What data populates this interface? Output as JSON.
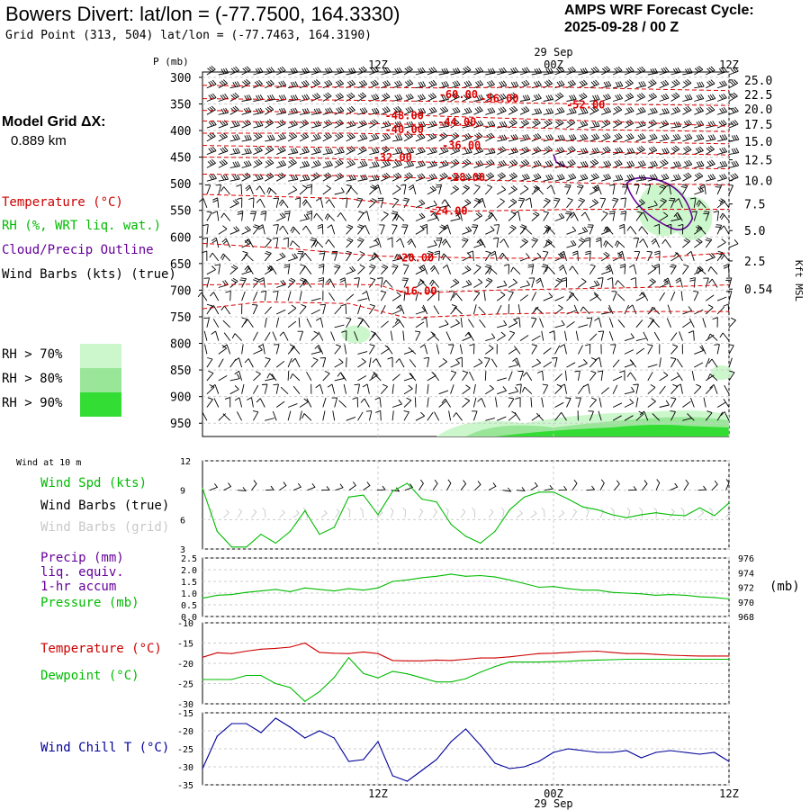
{
  "header": {
    "title": "Bowers Divert:  lat/lon = (-77.7500, 164.3330)",
    "subtitle": "Grid Point (313, 504) lat/lon = (-77.7463, 164.3190)",
    "cycle_label": "AMPS WRF Forecast Cycle:",
    "cycle_value": "2025-09-28 / 00  Z",
    "grid_dx_label": "Model Grid ΔX:",
    "grid_dx_value": "0.889 km"
  },
  "legend": {
    "temperature": "Temperature (°C)",
    "rh": "RH (%, WRT liq. wat.)",
    "cloud": "Cloud/Precip Outline",
    "wind_barbs": "Wind Barbs (kts) (true)",
    "rh_levels": [
      "RH > 70%",
      "RH > 80%",
      "RH > 90%"
    ],
    "rh_colors": [
      "#ccf7cc",
      "#99e699",
      "#33dd33"
    ]
  },
  "time_axis": {
    "top_date": "29 Sep",
    "bottom_date": "29 Sep",
    "ticks": [
      "12Z",
      "00Z",
      "12Z"
    ],
    "tick_hours": [
      12,
      24,
      36
    ]
  },
  "chart_data": [
    {
      "type": "contour",
      "id": "cross-section",
      "ylabel": "P (mb)",
      "right_axis_label": "Kft MSL",
      "pressure_ticks": [
        300,
        350,
        400,
        450,
        500,
        550,
        600,
        650,
        700,
        750,
        800,
        850,
        900,
        950
      ],
      "height_ticks": [
        "25.0",
        "22.5",
        "20.0",
        "17.5",
        "15.0",
        "12.5",
        "10.0",
        "7.5",
        "5.0",
        "2.5",
        "0.54"
      ],
      "height_tick_pressures": [
        305,
        332,
        359,
        388,
        420,
        455,
        494,
        538,
        588,
        645,
        698
      ],
      "x_range": [
        0,
        36
      ],
      "y_range": [
        290,
        975
      ],
      "temperature_labels": [
        {
          "text": "-60.00",
          "x": 17.5,
          "p": 332
        },
        {
          "text": "-56.00",
          "x": 20.3,
          "p": 340
        },
        {
          "text": "-52.00",
          "x": 26.2,
          "p": 352
        },
        {
          "text": "-48.00",
          "x": 13.8,
          "p": 372
        },
        {
          "text": "-44.00",
          "x": 17.4,
          "p": 384
        },
        {
          "text": "-40.00",
          "x": 13.8,
          "p": 398
        },
        {
          "text": "-36.00",
          "x": 17.7,
          "p": 428
        },
        {
          "text": "-32.00",
          "x": 13.0,
          "p": 451
        },
        {
          "text": "-28.00",
          "x": 18.0,
          "p": 488
        },
        {
          "text": "-24.00",
          "x": 16.8,
          "p": 551
        },
        {
          "text": "-20.00",
          "x": 14.5,
          "p": 639
        },
        {
          "text": "-16.00",
          "x": 14.7,
          "p": 702
        }
      ]
    },
    {
      "type": "line",
      "id": "wind-speed",
      "title": "Wind at 10 m",
      "series_label": "Wind Spd (kts)",
      "barbs_true_label": "Wind Barbs (true)",
      "barbs_grid_label": "Wind Barbs (grid)",
      "ylim": [
        3,
        12
      ],
      "yticks": [
        3,
        6,
        9,
        12
      ],
      "x": [
        0,
        1,
        2,
        3,
        4,
        5,
        6,
        7,
        8,
        9,
        10,
        11,
        12,
        13,
        14,
        15,
        16,
        17,
        18,
        19,
        20,
        21,
        22,
        23,
        24,
        25,
        26,
        27,
        28,
        29,
        30,
        31,
        32,
        33,
        34,
        35,
        36
      ],
      "values": [
        9.2,
        4.8,
        3.2,
        3.2,
        4.5,
        3.6,
        4.8,
        6.9,
        4.5,
        5.2,
        8.3,
        8.5,
        6.5,
        8.9,
        9.7,
        8.1,
        7.8,
        5.5,
        4.3,
        3.6,
        4.8,
        7.0,
        8.3,
        8.8,
        8.8,
        8.1,
        7.3,
        7.0,
        6.5,
        6.2,
        6.5,
        6.7,
        6.5,
        6.4,
        7.2,
        6.4,
        7.7
      ]
    },
    {
      "type": "line",
      "id": "precip-pressure",
      "precip_label": "Precip (mm)",
      "precip_label_2": "liq. equiv.",
      "precip_label_3": "1-hr accum",
      "pressure_label": "Pressure (mb)",
      "right_unit": "(mb)",
      "left_ylim": [
        0.0,
        2.5
      ],
      "left_yticks": [
        "0.0",
        "0.5",
        "1.0",
        "1.5",
        "2.0",
        "2.5"
      ],
      "right_ylim": [
        968,
        976
      ],
      "right_yticks": [
        968,
        970,
        972,
        974,
        976
      ],
      "x": [
        0,
        1,
        2,
        3,
        4,
        5,
        6,
        7,
        8,
        9,
        10,
        11,
        12,
        13,
        14,
        15,
        16,
        17,
        18,
        19,
        20,
        21,
        22,
        23,
        24,
        25,
        26,
        27,
        28,
        29,
        30,
        31,
        32,
        33,
        34,
        35,
        36
      ],
      "pressure": [
        970.5,
        970.9,
        971.0,
        971.3,
        971.5,
        971.7,
        971.4,
        971.9,
        971.7,
        971.5,
        971.8,
        971.6,
        971.9,
        972.8,
        973.0,
        973.3,
        973.5,
        973.8,
        973.5,
        973.6,
        973.4,
        973.0,
        972.5,
        972.0,
        972.1,
        971.8,
        971.6,
        971.6,
        971.3,
        971.2,
        971.1,
        970.9,
        971.0,
        970.9,
        970.7,
        970.6,
        970.4
      ]
    },
    {
      "type": "line",
      "id": "temp-dewpoint",
      "temperature_label": "Temperature (°C)",
      "dewpoint_label": "Dewpoint (°C)",
      "ylim": [
        -30,
        -10
      ],
      "yticks": [
        -30,
        -25,
        -20,
        -15,
        -10
      ],
      "x": [
        0,
        1,
        2,
        3,
        4,
        5,
        6,
        7,
        8,
        9,
        10,
        11,
        12,
        13,
        14,
        15,
        16,
        17,
        18,
        19,
        20,
        21,
        22,
        23,
        24,
        25,
        26,
        27,
        28,
        29,
        30,
        31,
        32,
        33,
        34,
        35,
        36
      ],
      "series": [
        {
          "name": "Temperature (°C)",
          "color": "#cc0000",
          "values": [
            -18.5,
            -17.4,
            -17.6,
            -17.0,
            -16.5,
            -16.3,
            -16.0,
            -15.0,
            -17.3,
            -17.5,
            -17.6,
            -17.2,
            -17.6,
            -19.3,
            -19.4,
            -19.4,
            -19.2,
            -19.3,
            -19.0,
            -18.7,
            -18.7,
            -18.4,
            -18.0,
            -17.6,
            -17.5,
            -17.3,
            -17.1,
            -17.0,
            -17.3,
            -17.6,
            -17.6,
            -17.8,
            -18.0,
            -18.1,
            -18.2,
            -18.2,
            -18.2
          ]
        },
        {
          "name": "Dewpoint (°C)",
          "color": "#00bb00",
          "values": [
            -24.0,
            -24.0,
            -24.0,
            -23.0,
            -23.0,
            -25.0,
            -26.0,
            -29.4,
            -27.0,
            -23.5,
            -18.6,
            -22.5,
            -23.6,
            -22.0,
            -22.6,
            -23.6,
            -24.6,
            -24.6,
            -23.8,
            -22.2,
            -20.8,
            -19.7,
            -19.7,
            -19.7,
            -19.6,
            -19.5,
            -19.3,
            -19.2,
            -19.1,
            -19.0,
            -19.0,
            -19.0,
            -19.0,
            -19.0,
            -19.0,
            -19.0,
            -19.0
          ]
        }
      ]
    },
    {
      "type": "line",
      "id": "wind-chill",
      "series_label": "Wind Chill T (°C)",
      "color": "#000099",
      "ylim": [
        -35,
        -15
      ],
      "yticks": [
        -35,
        -30,
        -25,
        -20,
        -15
      ],
      "x": [
        0,
        1,
        2,
        3,
        4,
        5,
        6,
        7,
        8,
        9,
        10,
        11,
        12,
        13,
        14,
        15,
        16,
        17,
        18,
        19,
        20,
        21,
        22,
        23,
        24,
        25,
        26,
        27,
        28,
        29,
        30,
        31,
        32,
        33,
        34,
        35,
        36
      ],
      "values": [
        -30.5,
        -21.5,
        -18.0,
        -18.0,
        -20.5,
        -16.5,
        -19.0,
        -22.0,
        -20.0,
        -22.0,
        -28.5,
        -28.0,
        -23.0,
        -32.5,
        -34.0,
        -31.0,
        -28.0,
        -23.0,
        -19.5,
        -24.0,
        -29.0,
        -30.5,
        -30.0,
        -28.5,
        -26.0,
        -25.0,
        -25.5,
        -26.0,
        -26.0,
        -25.5,
        -27.5,
        -26.0,
        -25.5,
        -26.0,
        -26.5,
        -26.0,
        -28.5
      ]
    }
  ]
}
